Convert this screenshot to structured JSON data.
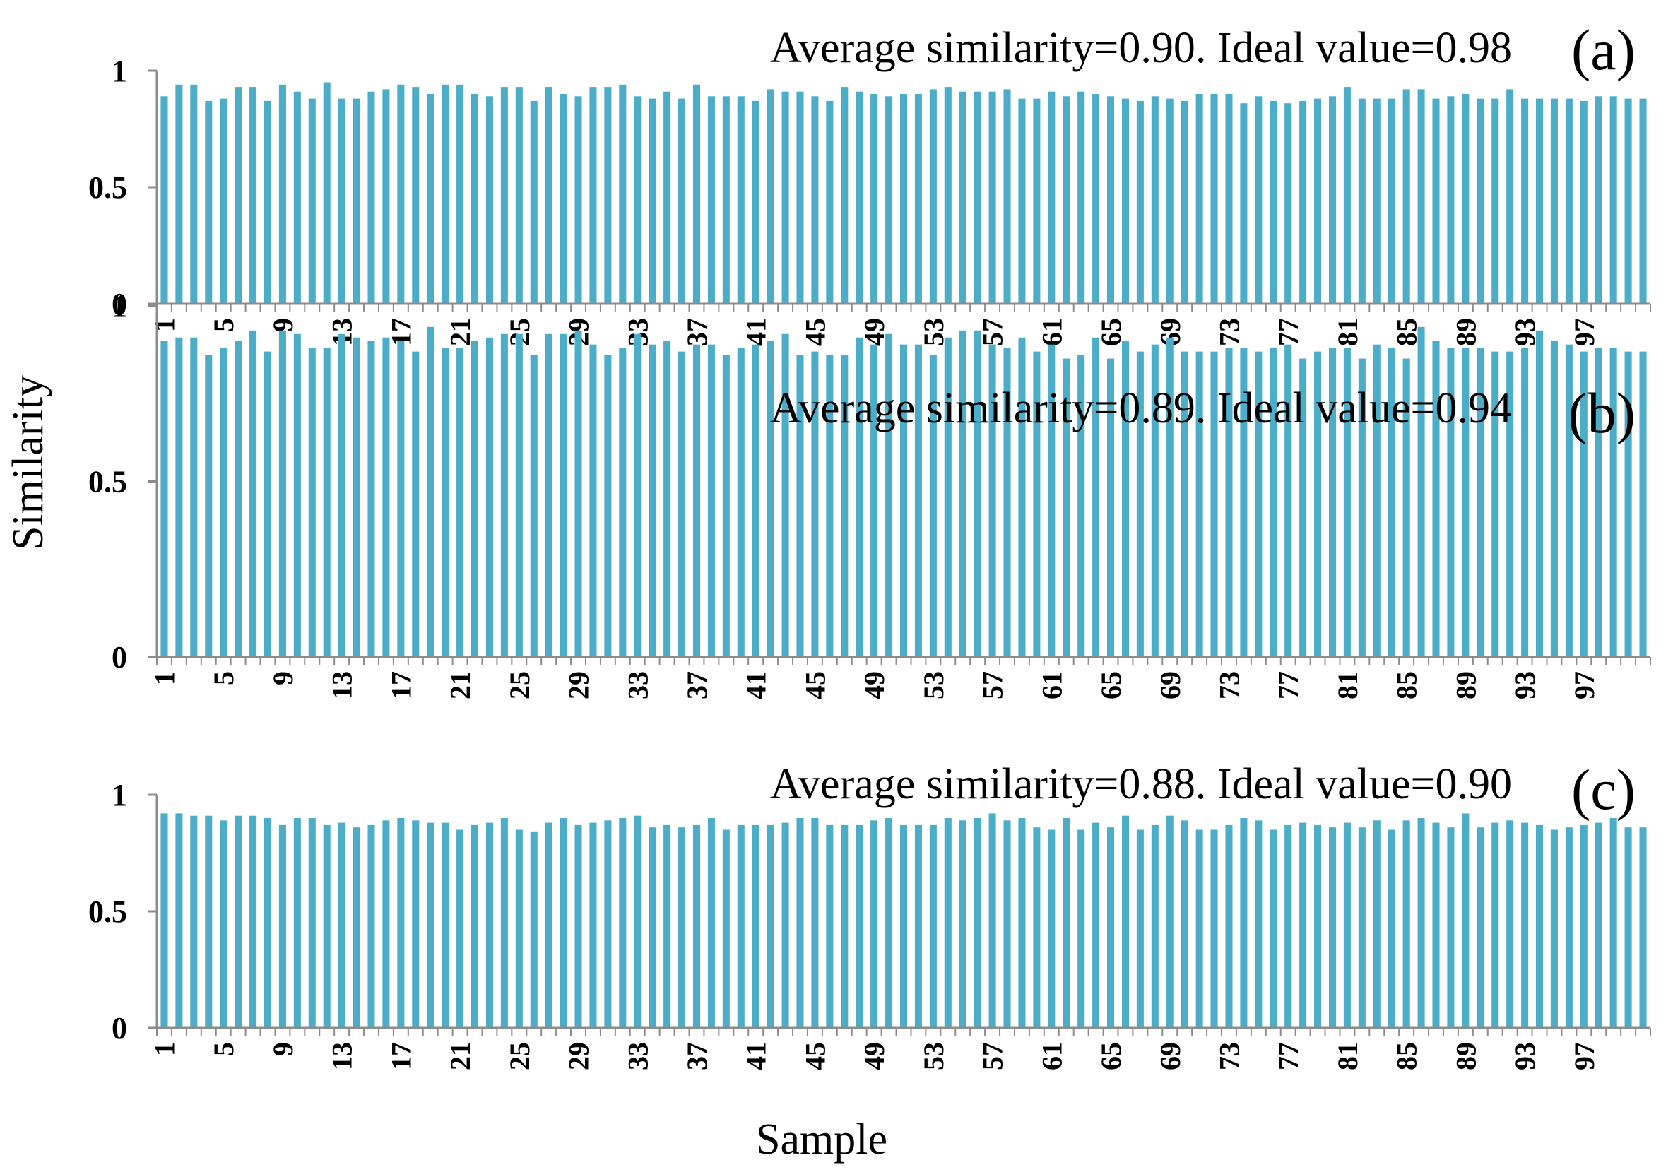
{
  "figure": {
    "ylabel": "Similarity",
    "xlabel": "Sample",
    "bar_color": "#4badc8",
    "axis_color": "#8c8c8c"
  },
  "chart_data": [
    {
      "type": "bar",
      "panel_label": "(a)",
      "title": "Average similarity=0.90. Ideal value=0.98",
      "xlabel": "Sample",
      "ylabel": "Similarity",
      "ylim": [
        0,
        1
      ],
      "yticks": [
        "0",
        "0.5",
        "1"
      ],
      "xtick_labels": [
        "1",
        "5",
        "9",
        "13",
        "17",
        "21",
        "25",
        "29",
        "33",
        "37",
        "41",
        "45",
        "49",
        "53",
        "57",
        "61",
        "65",
        "69",
        "73",
        "77",
        "81",
        "85",
        "89",
        "93",
        "97"
      ],
      "values": [
        0.89,
        0.94,
        0.94,
        0.87,
        0.88,
        0.93,
        0.93,
        0.87,
        0.94,
        0.91,
        0.88,
        0.95,
        0.88,
        0.88,
        0.91,
        0.92,
        0.94,
        0.93,
        0.9,
        0.94,
        0.94,
        0.9,
        0.89,
        0.93,
        0.93,
        0.87,
        0.93,
        0.9,
        0.89,
        0.93,
        0.93,
        0.94,
        0.89,
        0.88,
        0.91,
        0.88,
        0.94,
        0.89,
        0.89,
        0.89,
        0.87,
        0.92,
        0.91,
        0.91,
        0.89,
        0.87,
        0.93,
        0.91,
        0.9,
        0.89,
        0.9,
        0.9,
        0.92,
        0.93,
        0.91,
        0.91,
        0.91,
        0.92,
        0.88,
        0.88,
        0.91,
        0.89,
        0.91,
        0.9,
        0.89,
        0.88,
        0.87,
        0.89,
        0.88,
        0.87,
        0.9,
        0.9,
        0.9,
        0.86,
        0.89,
        0.87,
        0.86,
        0.87,
        0.88,
        0.89,
        0.93,
        0.88,
        0.88,
        0.88,
        0.92,
        0.92,
        0.88,
        0.89,
        0.9,
        0.88,
        0.88,
        0.92,
        0.88,
        0.88,
        0.88,
        0.88,
        0.87,
        0.89,
        0.89,
        0.88,
        0.88
      ]
    },
    {
      "type": "bar",
      "panel_label": "(b)",
      "title": "Average similarity=0.89. Ideal value=0.94",
      "xlabel": "Sample",
      "ylabel": "Similarity",
      "ylim": [
        0,
        1
      ],
      "yticks": [
        "0",
        "0.5",
        "1"
      ],
      "xtick_labels": [
        "1",
        "5",
        "9",
        "13",
        "17",
        "21",
        "25",
        "29",
        "33",
        "37",
        "41",
        "45",
        "49",
        "53",
        "57",
        "61",
        "65",
        "69",
        "73",
        "77",
        "81",
        "85",
        "89",
        "93",
        "97"
      ],
      "values": [
        0.9,
        0.91,
        0.91,
        0.86,
        0.88,
        0.9,
        0.93,
        0.87,
        0.93,
        0.92,
        0.88,
        0.88,
        0.92,
        0.91,
        0.9,
        0.91,
        0.9,
        0.87,
        0.94,
        0.88,
        0.88,
        0.9,
        0.91,
        0.92,
        0.92,
        0.86,
        0.92,
        0.92,
        0.93,
        0.89,
        0.86,
        0.88,
        0.92,
        0.89,
        0.9,
        0.87,
        0.89,
        0.89,
        0.86,
        0.88,
        0.89,
        0.9,
        0.92,
        0.86,
        0.87,
        0.86,
        0.86,
        0.91,
        0.89,
        0.92,
        0.89,
        0.89,
        0.86,
        0.91,
        0.93,
        0.93,
        0.89,
        0.88,
        0.91,
        0.87,
        0.89,
        0.85,
        0.86,
        0.91,
        0.85,
        0.9,
        0.87,
        0.89,
        0.91,
        0.87,
        0.87,
        0.87,
        0.88,
        0.88,
        0.87,
        0.88,
        0.89,
        0.85,
        0.87,
        0.88,
        0.88,
        0.85,
        0.89,
        0.88,
        0.85,
        0.94,
        0.9,
        0.88,
        0.88,
        0.88,
        0.87,
        0.87,
        0.88,
        0.93,
        0.9,
        0.89,
        0.87,
        0.88,
        0.88,
        0.87,
        0.87
      ]
    },
    {
      "type": "bar",
      "panel_label": "(c)",
      "title": "Average similarity=0.88. Ideal value=0.90",
      "xlabel": "Sample",
      "ylabel": "Similarity",
      "ylim": [
        0,
        1
      ],
      "yticks": [
        "0",
        "0.5",
        "1"
      ],
      "xtick_labels": [
        "1",
        "5",
        "9",
        "13",
        "17",
        "21",
        "25",
        "29",
        "33",
        "37",
        "41",
        "45",
        "49",
        "53",
        "57",
        "61",
        "65",
        "69",
        "73",
        "77",
        "81",
        "85",
        "89",
        "93",
        "97"
      ],
      "values": [
        0.92,
        0.92,
        0.91,
        0.91,
        0.89,
        0.91,
        0.91,
        0.9,
        0.87,
        0.9,
        0.9,
        0.87,
        0.88,
        0.86,
        0.87,
        0.89,
        0.9,
        0.89,
        0.88,
        0.88,
        0.85,
        0.87,
        0.88,
        0.9,
        0.85,
        0.84,
        0.88,
        0.9,
        0.87,
        0.88,
        0.89,
        0.9,
        0.91,
        0.86,
        0.87,
        0.86,
        0.87,
        0.9,
        0.85,
        0.87,
        0.87,
        0.87,
        0.88,
        0.9,
        0.9,
        0.87,
        0.87,
        0.87,
        0.89,
        0.9,
        0.87,
        0.87,
        0.87,
        0.9,
        0.89,
        0.9,
        0.92,
        0.89,
        0.9,
        0.86,
        0.85,
        0.9,
        0.85,
        0.88,
        0.86,
        0.91,
        0.85,
        0.87,
        0.91,
        0.89,
        0.85,
        0.85,
        0.87,
        0.9,
        0.89,
        0.85,
        0.87,
        0.88,
        0.87,
        0.86,
        0.88,
        0.86,
        0.89,
        0.85,
        0.89,
        0.9,
        0.88,
        0.86,
        0.92,
        0.86,
        0.88,
        0.89,
        0.88,
        0.87,
        0.85,
        0.86,
        0.87,
        0.88,
        0.9,
        0.86,
        0.86
      ]
    }
  ]
}
